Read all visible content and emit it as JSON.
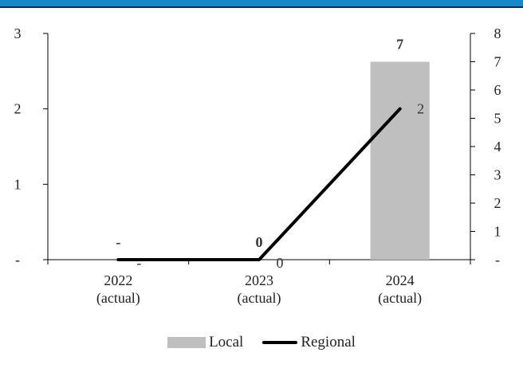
{
  "chart_data": {
    "type": "bar+line",
    "categories": [
      [
        "2022",
        "(actual)"
      ],
      [
        "2023",
        "(actual)"
      ],
      [
        "2024",
        "(actual)"
      ]
    ],
    "series": [
      {
        "name": "Local",
        "type": "bar",
        "axis": "right",
        "values": [
          0,
          0,
          7
        ],
        "labels": [
          "-",
          "0",
          "7"
        ],
        "color": "#bfbfbf"
      },
      {
        "name": "Regional",
        "type": "line",
        "axis": "left",
        "values": [
          0,
          0,
          2
        ],
        "labels": [
          "-",
          "0",
          "2"
        ],
        "color": "#000000"
      }
    ],
    "left_axis": {
      "ylim": [
        0,
        3
      ],
      "ticks": [
        "-",
        "1",
        "2",
        "3"
      ]
    },
    "right_axis": {
      "ylim": [
        0,
        8
      ],
      "ticks": [
        "-",
        "1",
        "2",
        "3",
        "4",
        "5",
        "6",
        "7",
        "8"
      ]
    },
    "legend": {
      "position": "bottom",
      "items": [
        "Local",
        "Regional"
      ]
    }
  }
}
